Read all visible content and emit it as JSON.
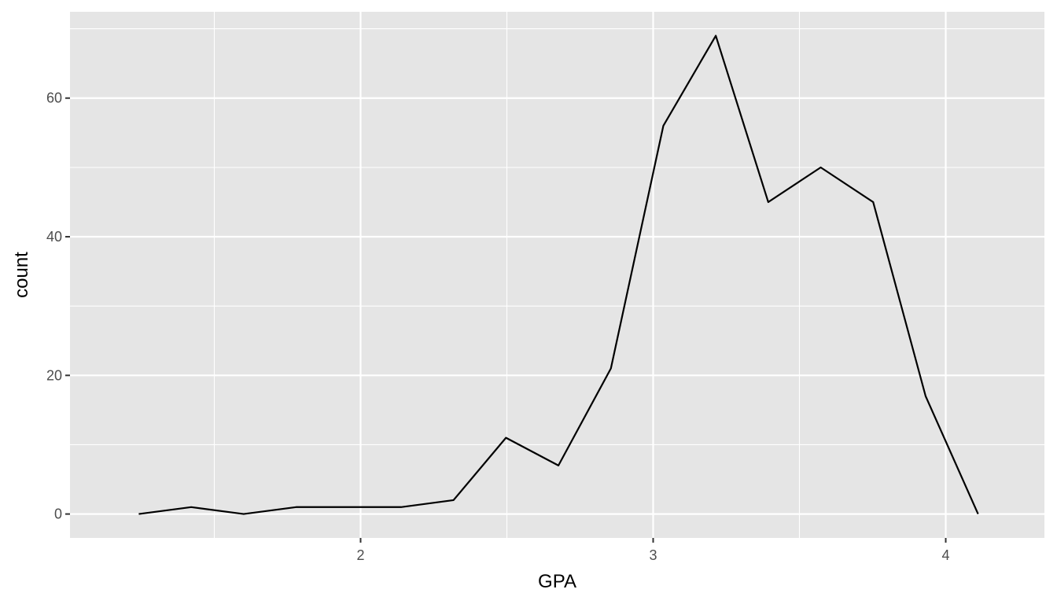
{
  "chart_data": {
    "type": "line",
    "title": "",
    "xlabel": "GPA",
    "ylabel": "count",
    "xlim": [
      1.0068,
      4.3373
    ],
    "ylim": [
      -3.45,
      72.45
    ],
    "x_ticks": [
      2,
      3,
      4
    ],
    "x_tick_labels": [
      "2",
      "3",
      "4"
    ],
    "x_minor_ticks": [
      1.5,
      2.5,
      3.5
    ],
    "y_ticks": [
      0,
      20,
      40,
      60
    ],
    "y_tick_labels": [
      "0",
      "20",
      "40",
      "60"
    ],
    "y_minor_ticks": [
      10,
      30,
      50,
      70
    ],
    "grid": true,
    "legend": "none",
    "colors": {
      "panel_background": "#e5e5e5",
      "grid_major": "#ffffff",
      "line": "#000000",
      "tick_text": "#4d4d4d",
      "tick_mark": "#333333"
    },
    "series": [
      {
        "x": [
          1.2418,
          1.4211,
          1.6004,
          1.7797,
          1.959,
          2.1383,
          2.3176,
          2.4969,
          2.6762,
          2.8555,
          3.0348,
          3.2141,
          3.3934,
          3.5727,
          3.752,
          3.9313,
          4.1106
        ],
        "values": [
          0,
          1,
          0,
          1,
          1,
          1,
          2,
          11,
          7,
          21,
          56,
          69,
          45,
          50,
          45,
          17,
          0
        ]
      }
    ]
  }
}
